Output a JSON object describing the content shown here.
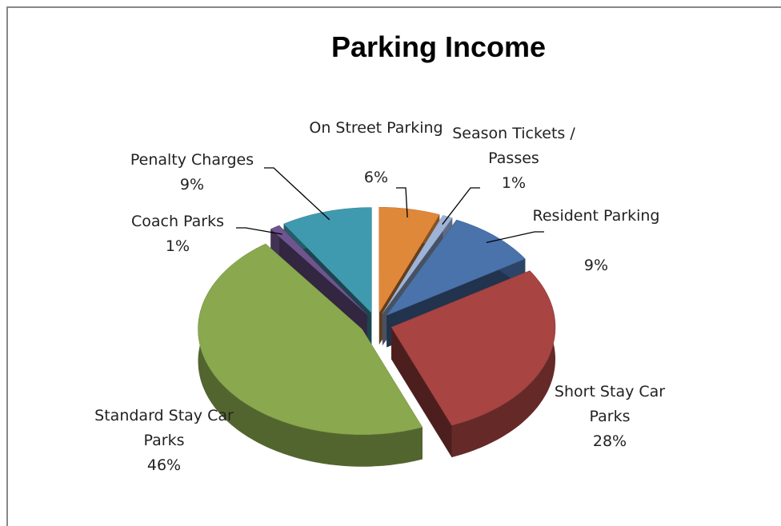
{
  "chart_data": {
    "type": "pie",
    "title": "Parking Income",
    "categories": [
      "On Street Parking",
      "Season Tickets / Passes",
      "Resident Parking",
      "Short Stay Car Parks",
      "Standard Stay Car Parks",
      "Coach Parks",
      "Penalty Charges"
    ],
    "values": [
      6,
      1,
      9,
      28,
      46,
      1,
      9
    ],
    "value_labels": [
      "6%",
      "1%",
      "9%",
      "28%",
      "46%",
      "1%",
      "9%"
    ],
    "colors": [
      "#e0883a",
      "#9db3d8",
      "#4a72ab",
      "#a84442",
      "#8aa84e",
      "#6e558e",
      "#3f9aaf"
    ]
  }
}
